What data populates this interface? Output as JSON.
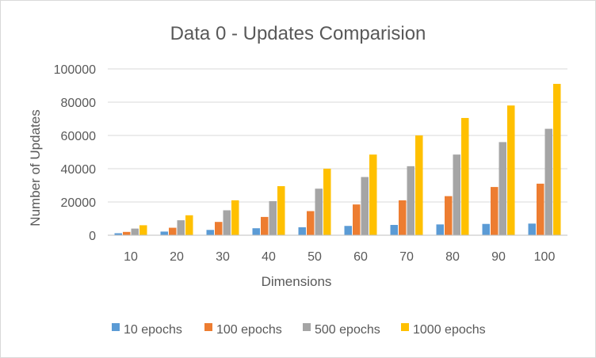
{
  "chart_data": {
    "type": "bar",
    "title": "Data 0 - Updates Comparision",
    "xlabel": "Dimensions",
    "ylabel": "Number of Updates",
    "categories": [
      "10",
      "20",
      "30",
      "40",
      "50",
      "60",
      "70",
      "80",
      "90",
      "100"
    ],
    "ylim": [
      0,
      100000
    ],
    "yticks": [
      0,
      20000,
      40000,
      60000,
      80000,
      100000
    ],
    "ytick_labels": [
      "0",
      "20000",
      "40000",
      "60000",
      "80000",
      "100000"
    ],
    "grid": true,
    "legend_position": "bottom",
    "series": [
      {
        "name": "10 epochs",
        "color": "#5b9bd5",
        "values": [
          1200,
          2200,
          3200,
          4200,
          4800,
          5600,
          6200,
          6500,
          6800,
          7000
        ]
      },
      {
        "name": "100 epochs",
        "color": "#ed7d31",
        "values": [
          2000,
          4500,
          8000,
          11000,
          14500,
          18500,
          21000,
          23500,
          29000,
          31000
        ]
      },
      {
        "name": "500 epochs",
        "color": "#a5a5a5",
        "values": [
          4000,
          9000,
          15000,
          20500,
          28000,
          35000,
          41500,
          48500,
          56000,
          64000
        ]
      },
      {
        "name": "1000 epochs",
        "color": "#ffc000",
        "values": [
          6000,
          12000,
          21000,
          29500,
          40000,
          48500,
          60000,
          70500,
          78000,
          91000
        ]
      }
    ]
  }
}
